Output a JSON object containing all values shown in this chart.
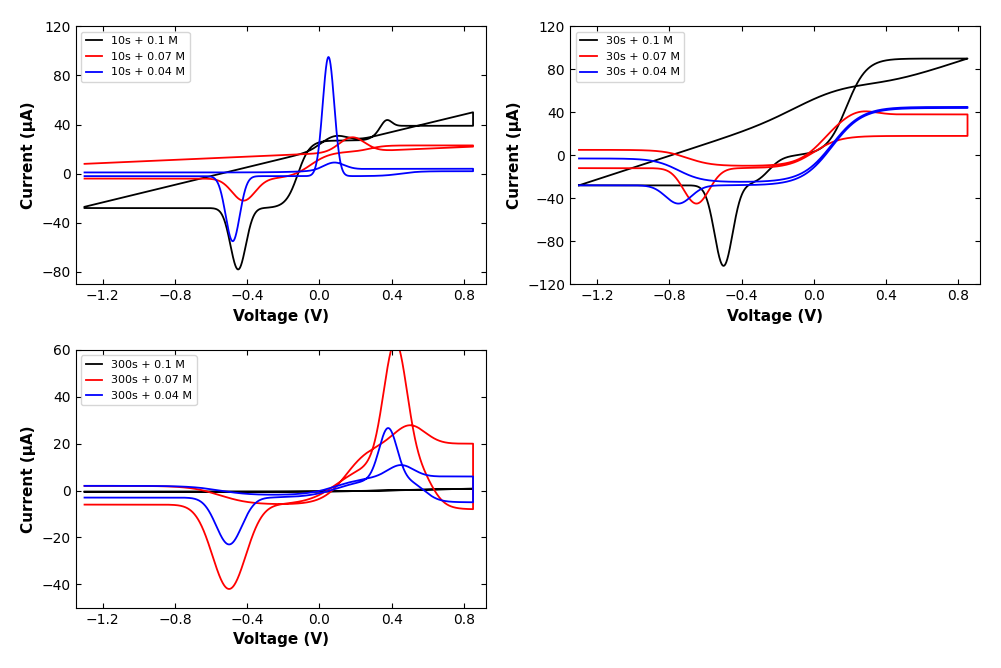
{
  "xlabel": "Voltage (V)",
  "ylabel": "Current (μA)",
  "panel1_legend": [
    "10s + 0.1 M",
    "10s + 0.07 M",
    "10s + 0.04 M"
  ],
  "panel2_legend": [
    "30s + 0.1 M",
    "30s + 0.07 M",
    "30s + 0.04 M"
  ],
  "panel3_legend": [
    "300s + 0.1 M",
    "300s + 0.07 M",
    "300s + 0.04 M"
  ],
  "colors": [
    "black",
    "red",
    "blue"
  ],
  "panel1_ylim": [
    -90,
    120
  ],
  "panel2_ylim": [
    -120,
    120
  ],
  "panel3_ylim": [
    -50,
    60
  ],
  "xlim": [
    -1.35,
    0.92
  ],
  "panel1_yticks": [
    -80,
    -40,
    0,
    40,
    80,
    120
  ],
  "panel2_yticks": [
    -120,
    -80,
    -40,
    0,
    40,
    80,
    120
  ],
  "panel3_yticks": [
    -40,
    -20,
    0,
    20,
    40,
    60
  ],
  "xticks": [
    -1.2,
    -0.8,
    -0.4,
    0.0,
    0.4,
    0.8
  ],
  "lw": 1.3
}
